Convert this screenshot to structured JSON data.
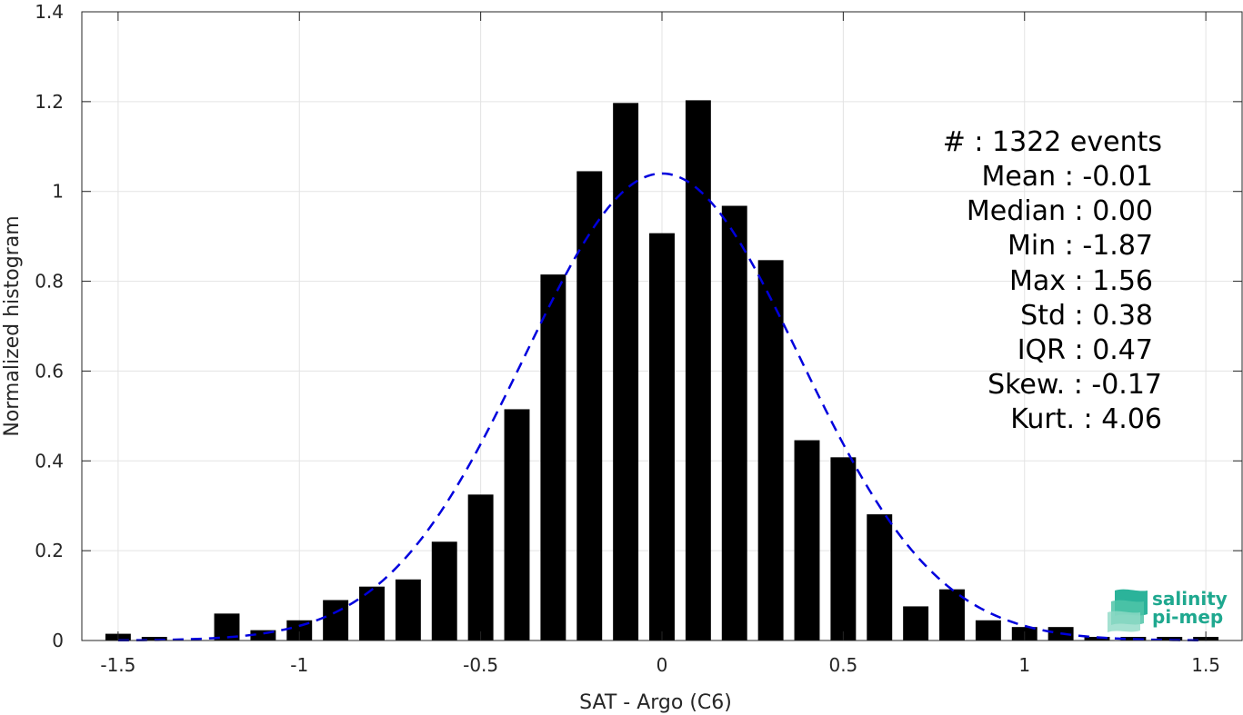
{
  "chart_data": {
    "type": "bar",
    "xlabel": "SAT - Argo (C6)",
    "ylabel": "Normalized histogram",
    "xlim": [
      -1.6,
      1.6
    ],
    "ylim": [
      0,
      1.4
    ],
    "xticks": [
      -1.5,
      -1,
      -0.5,
      0,
      0.5,
      1,
      1.5
    ],
    "xtick_labels": [
      "-1.5",
      "-1",
      "-0.5",
      "0",
      "0.5",
      "1",
      "1.5"
    ],
    "yticks": [
      0,
      0.2,
      0.4,
      0.6,
      0.8,
      1,
      1.2,
      1.4
    ],
    "ytick_labels": [
      "0",
      "0.2",
      "0.4",
      "0.6",
      "0.8",
      "1",
      "1.2",
      "1.4"
    ],
    "grid": true,
    "bar_color": "#000000",
    "fit_color": "#0000dd",
    "bin_width": 0.1,
    "bars": {
      "x": [
        -1.5,
        -1.4,
        -1.2,
        -1.1,
        -1.0,
        -0.9,
        -0.8,
        -0.7,
        -0.6,
        -0.5,
        -0.4,
        -0.3,
        -0.2,
        -0.1,
        0.0,
        0.1,
        0.2,
        0.3,
        0.4,
        0.5,
        0.6,
        0.7,
        0.8,
        0.9,
        1.0,
        1.1,
        1.2,
        1.3,
        1.4,
        1.5
      ],
      "values": [
        0.015,
        0.008,
        0.06,
        0.023,
        0.045,
        0.09,
        0.12,
        0.136,
        0.22,
        0.325,
        0.515,
        0.815,
        1.045,
        1.197,
        0.907,
        1.203,
        0.968,
        0.847,
        0.446,
        0.408,
        0.281,
        0.076,
        0.114,
        0.045,
        0.03,
        0.03,
        0.008,
        0.008,
        0.008,
        0.008
      ]
    },
    "fit": {
      "type": "normal",
      "mean": 0.0,
      "std": 0.38,
      "peak": 1.04,
      "style": "dashed"
    }
  },
  "stats": {
    "count": "#  : 1322 events",
    "mean": "Mean : -0.01",
    "median": "Median : 0.00",
    "min": "Min : -1.87",
    "max": "Max : 1.56",
    "std": "Std : 0.38",
    "iqr": "IQR : 0.47",
    "skew": "Skew. : -0.17",
    "kurt": "Kurt. : 4.06"
  },
  "logo": {
    "line1": "salinity",
    "line2": "pi-mep",
    "color": "#1fa88f"
  }
}
